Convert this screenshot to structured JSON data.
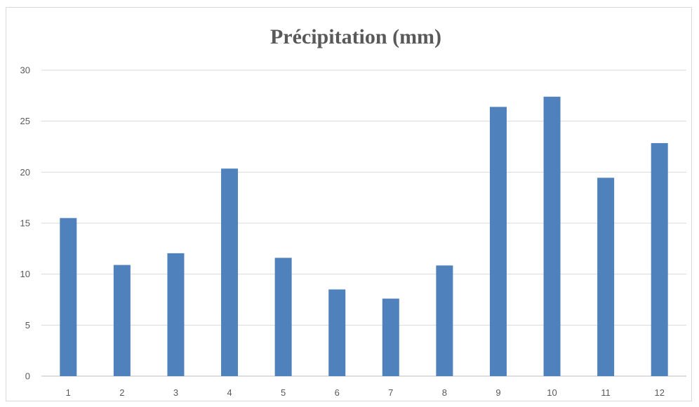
{
  "chart_data": {
    "type": "bar",
    "title": "Précipitation (mm)",
    "categories": [
      "1",
      "2",
      "3",
      "4",
      "5",
      "6",
      "7",
      "8",
      "9",
      "10",
      "11",
      "12"
    ],
    "values": [
      15.5,
      10.9,
      12.05,
      20.35,
      11.6,
      8.5,
      7.6,
      10.85,
      26.4,
      27.4,
      19.45,
      22.85
    ],
    "yticks": [
      "0",
      "5",
      "10",
      "15",
      "20",
      "25",
      "30"
    ],
    "ylim": [
      0,
      30
    ],
    "xlabel": "",
    "ylabel": "",
    "grid": true,
    "legend": "none",
    "colors": {
      "bar": "#4f81bd",
      "grid": "#d9d9d9",
      "axis": "#bfbfbf",
      "text": "#595959"
    }
  }
}
